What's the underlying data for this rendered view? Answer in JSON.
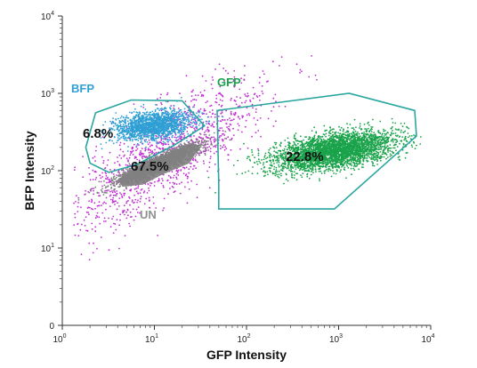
{
  "chart_data": {
    "type": "scatter",
    "xlabel": "GFP Intensity",
    "ylabel": "BFP Intensity",
    "x_scale": "log",
    "y_scale": "log",
    "grid": false,
    "x_ticks": [
      {
        "value": 1,
        "base": "10",
        "exp": "0"
      },
      {
        "value": 10,
        "base": "10",
        "exp": "1"
      },
      {
        "value": 100,
        "base": "10",
        "exp": "2"
      },
      {
        "value": 1000,
        "base": "10",
        "exp": "3"
      },
      {
        "value": 10000,
        "base": "10",
        "exp": "4"
      }
    ],
    "y_ticks": [
      {
        "value": 1,
        "text": "0",
        "base": "",
        "exp": ""
      },
      {
        "value": 10,
        "text": "",
        "base": "10",
        "exp": "1"
      },
      {
        "value": 100,
        "text": "",
        "base": "10",
        "exp": "2"
      },
      {
        "value": 1000,
        "text": "",
        "base": "10",
        "exp": "3"
      },
      {
        "value": 10000,
        "text": "",
        "base": "10",
        "exp": "4"
      }
    ],
    "gates": [
      {
        "name": "BFP",
        "percent": "6.8%",
        "color": "#2f9fd4",
        "outline_color": "#2aa6a0",
        "polygon": [
          [
            2.3,
            560
          ],
          [
            5.6,
            820
          ],
          [
            20,
            800
          ],
          [
            35,
            380
          ],
          [
            16,
            210
          ],
          [
            6.4,
            120
          ],
          [
            3.2,
            95
          ],
          [
            2.0,
            125
          ],
          [
            1.8,
            200
          ]
        ],
        "center": [
          9.5,
          380
        ],
        "spread": [
          0.21,
          0.09
        ],
        "tilt": 0.15,
        "count": 1600
      },
      {
        "name": "UN",
        "percent": "67.5%",
        "color": "#808080",
        "outline_color": "none",
        "polygon": [
          [
            4.5,
            62
          ],
          [
            4.0,
            76
          ],
          [
            6.3,
            110
          ],
          [
            14,
            165
          ],
          [
            25,
            230
          ],
          [
            31,
            200
          ],
          [
            24,
            125
          ],
          [
            12,
            88
          ],
          [
            7.5,
            66
          ]
        ],
        "center": [
          10.5,
          120
        ],
        "spread": [
          0.24,
          0.055
        ],
        "tilt": 0.52,
        "count": 1800
      },
      {
        "name": "GFP",
        "percent": "22.8%",
        "color": "#1aa34a",
        "outline_color": "#2aa6a0",
        "polygon": [
          [
            50,
            68
          ],
          [
            48,
            600
          ],
          [
            1300,
            1000
          ],
          [
            6700,
            600
          ],
          [
            7000,
            280
          ],
          [
            900,
            32
          ],
          [
            50,
            32
          ]
        ],
        "center": [
          900,
          180
        ],
        "spread": [
          0.33,
          0.11
        ],
        "tilt": 0.18,
        "count": 3500
      },
      {
        "name": "",
        "percent": "",
        "color": "#c02fd3",
        "outline_color": "none",
        "center": [
          14,
          170
        ],
        "spread": [
          0.55,
          0.3
        ],
        "tilt": 0.75,
        "count": 1300
      }
    ]
  }
}
